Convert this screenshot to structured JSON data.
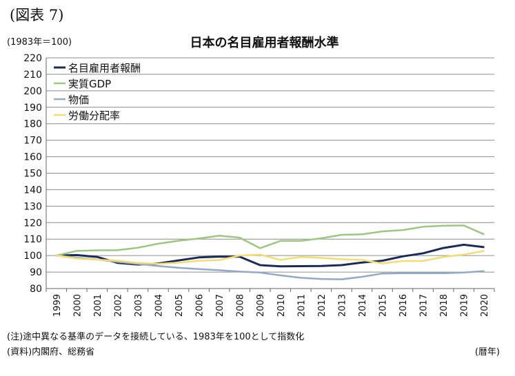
{
  "figure_label": "(図表 7)",
  "unit_label": "(1983年＝100)",
  "note": "(注)途中異なる基準のデータを接続している、1983年を100として指数化",
  "source": "(資料)内閣府、総務省",
  "chart_data": {
    "type": "line",
    "title": "日本の名目雇用者報酬水準",
    "xlabel": "(暦年)",
    "ylabel": "",
    "ylim": [
      80,
      220
    ],
    "yticks": [
      80,
      90,
      100,
      110,
      120,
      130,
      140,
      150,
      160,
      170,
      180,
      190,
      200,
      210,
      220
    ],
    "grid": true,
    "legend_position": "top-left",
    "categories": [
      "1999",
      "2000",
      "2001",
      "2002",
      "2003",
      "2004",
      "2005",
      "2006",
      "2007",
      "2008",
      "2009",
      "2010",
      "2011",
      "2012",
      "2013",
      "2014",
      "2015",
      "2016",
      "2017",
      "2018",
      "2019",
      "2020"
    ],
    "series": [
      {
        "name": "名目雇用者報酬",
        "color": "#1a2b5a",
        "values": [
          100,
          100.3,
          99.2,
          95.6,
          94.6,
          95.2,
          97.1,
          98.9,
          99.4,
          99.3,
          94.2,
          93.5,
          93.6,
          93.7,
          94.2,
          95.8,
          96.9,
          99.5,
          101.4,
          104.6,
          106.6,
          105.1
        ]
      },
      {
        "name": "実質GDP",
        "color": "#9bc87e",
        "values": [
          100,
          102.8,
          103.2,
          103.3,
          104.8,
          107.2,
          109.0,
          110.4,
          112.1,
          110.9,
          104.5,
          108.9,
          108.9,
          110.5,
          112.6,
          112.9,
          114.7,
          115.5,
          117.5,
          118.1,
          118.3,
          112.9
        ]
      },
      {
        "name": "物価",
        "color": "#93a9c8",
        "values": [
          100,
          98.8,
          97.6,
          96.2,
          94.9,
          93.7,
          92.6,
          91.8,
          91.1,
          90.3,
          89.7,
          88.0,
          86.5,
          85.8,
          85.6,
          87.1,
          89.1,
          89.3,
          89.3,
          89.3,
          89.7,
          90.6
        ]
      },
      {
        "name": "労働分配率",
        "color": "#f5dc71",
        "values": [
          100,
          98.2,
          97.5,
          96.9,
          95.6,
          95.0,
          95.7,
          96.9,
          97.3,
          100.0,
          100.6,
          97.4,
          99.2,
          98.6,
          97.8,
          97.4,
          95.2,
          96.7,
          96.7,
          99.2,
          100.6,
          102.8
        ]
      }
    ]
  }
}
